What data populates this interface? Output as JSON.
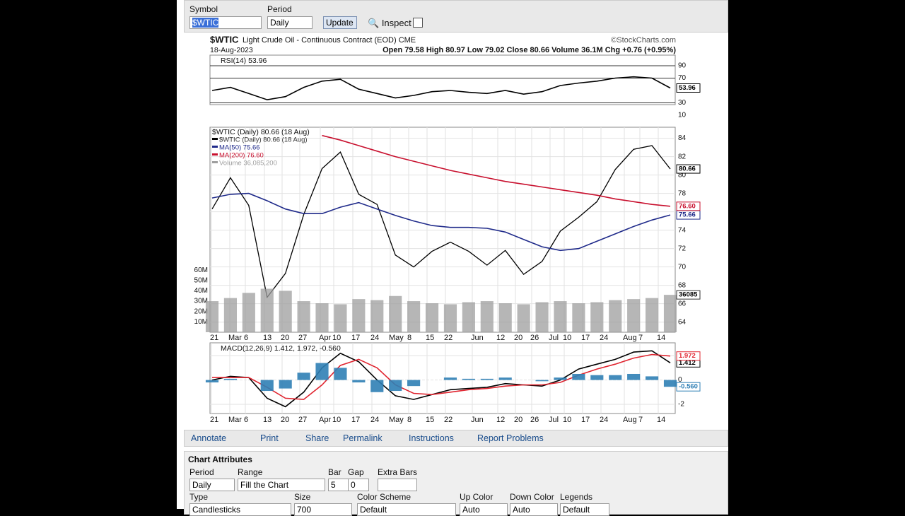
{
  "toolbar": {
    "symbol_label": "Symbol",
    "symbol": "$WTIC",
    "period_label": "Period",
    "period": "Daily",
    "update": "Update",
    "inspect": "Inspect"
  },
  "header": {
    "symbol": "$WTIC",
    "name": "Light Crude Oil - Continuous Contract (EOD) CME",
    "brand": "©StockCharts.com",
    "date": "18-Aug-2023",
    "quote": "Open 79.58  High 80.97  Low 79.02  Close 80.66  Volume 36.1M  Chg +0.76 (+0.95%)"
  },
  "chart_data": [
    {
      "type": "line",
      "title": "$WTIC (Daily) 80.66 (18 Aug)",
      "x_labels": [
        "21",
        "Mar",
        "6",
        "13",
        "20",
        "27",
        "Apr",
        "10",
        "17",
        "24",
        "May",
        "8",
        "15",
        "22",
        "Jun",
        "12",
        "20",
        "26",
        "Jul",
        "10",
        "17",
        "24",
        "Aug",
        "7",
        "14"
      ],
      "ylim": [
        62.9,
        85.2
      ],
      "yticks": [
        64,
        66,
        68,
        70,
        72,
        74,
        76,
        78,
        80,
        82,
        84
      ],
      "y2lim": [
        0,
        198000000
      ],
      "y2ticks": [
        {
          "value": 10000000,
          "label": "10M"
        },
        {
          "value": 20000000,
          "label": "20M"
        },
        {
          "value": 30000000,
          "label": "30M"
        },
        {
          "value": 40000000,
          "label": "40M"
        },
        {
          "value": 50000000,
          "label": "50M"
        },
        {
          "value": 60000000,
          "label": "60M"
        }
      ],
      "grid": true,
      "series": [
        {
          "name": "$WTIC (Daily) 80.66 (18 Aug)",
          "color": "#000000",
          "last_label": "80.66",
          "values": [
            76.3,
            79.7,
            76.7,
            66.7,
            69.3,
            75.7,
            80.7,
            82.5,
            77.9,
            76.8,
            71.3,
            70.0,
            71.7,
            72.7,
            71.7,
            70.2,
            71.8,
            69.2,
            70.6,
            73.9,
            75.4,
            77.1,
            80.6,
            82.8,
            83.2,
            80.66
          ]
        },
        {
          "name": "MA(50) 75.66",
          "color": "#1f2a8a",
          "last_label": "75.66",
          "values": [
            77.5,
            77.9,
            78.0,
            77.2,
            76.3,
            75.8,
            75.8,
            76.5,
            77.0,
            76.3,
            75.6,
            75.0,
            74.5,
            74.3,
            74.3,
            74.2,
            73.8,
            73.0,
            72.2,
            71.8,
            72.0,
            72.8,
            73.6,
            74.4,
            75.1,
            75.66
          ]
        },
        {
          "name": "MA(200) 76.60",
          "color": "#c8102e",
          "last_label": "76.60",
          "values": [
            null,
            null,
            null,
            null,
            null,
            null,
            84.3,
            83.8,
            83.2,
            82.6,
            82.0,
            81.5,
            81.0,
            80.5,
            80.1,
            79.7,
            79.3,
            79.0,
            78.7,
            78.4,
            78.1,
            77.8,
            77.4,
            77.1,
            76.8,
            76.6
          ]
        },
        {
          "name": "Volume 36,085,200",
          "type": "bar",
          "axis": "y2",
          "color": "#9e9e9e",
          "last_label": "36085",
          "values": [
            30000000,
            33000000,
            38000000,
            42000000,
            40000000,
            30000000,
            28000000,
            27000000,
            32000000,
            31000000,
            35000000,
            30000000,
            28000000,
            27000000,
            29000000,
            30000000,
            28000000,
            27000000,
            29000000,
            30000000,
            28000000,
            29000000,
            31000000,
            32000000,
            33000000,
            36085200
          ]
        }
      ]
    },
    {
      "type": "line",
      "title": "RSI(14) 53.96",
      "ylim": [
        27.1,
        107.1
      ],
      "yticks": [
        10,
        30,
        70,
        90
      ],
      "series": [
        {
          "name": "RSI(14)",
          "color": "#000000",
          "last_label": "53.96",
          "values": [
            50,
            55,
            45,
            35,
            40,
            55,
            65,
            68,
            52,
            45,
            38,
            42,
            48,
            50,
            47,
            45,
            50,
            44,
            48,
            58,
            62,
            65,
            70,
            72,
            70,
            53.96
          ]
        }
      ]
    },
    {
      "type": "line",
      "title": "MACD(12,26,9) 1.412, 1.972, -0.560",
      "ylim": [
        -2.76,
        3.06
      ],
      "yticks": [
        -2,
        0,
        2
      ],
      "series": [
        {
          "name": "MACD",
          "color": "#000000",
          "last_label": "1.412",
          "values": [
            0,
            0.3,
            0.2,
            -1.5,
            -2.2,
            -1.0,
            1.0,
            2.2,
            1.5,
            0,
            -1.3,
            -1.6,
            -1.2,
            -0.8,
            -0.7,
            -0.6,
            -0.3,
            -0.4,
            -0.5,
            0,
            0.9,
            1.3,
            1.7,
            2.3,
            2.4,
            1.412
          ]
        },
        {
          "name": "Signal",
          "color": "#e0242f",
          "last_label": "1.972",
          "values": [
            0.2,
            0.2,
            0.2,
            -0.6,
            -1.5,
            -1.6,
            -0.4,
            1.2,
            1.7,
            1.0,
            -0.4,
            -1.1,
            -1.2,
            -1.0,
            -0.8,
            -0.7,
            -0.5,
            -0.4,
            -0.4,
            -0.2,
            0.4,
            0.9,
            1.3,
            1.8,
            2.1,
            1.972
          ]
        },
        {
          "name": "Histogram",
          "type": "bar",
          "color": "#2f7fb5",
          "last_label": "-0.560",
          "values": [
            -0.2,
            0.1,
            0,
            -0.9,
            -0.7,
            0.6,
            1.4,
            1.0,
            -0.2,
            -1.0,
            -0.9,
            -0.5,
            0,
            0.2,
            0.1,
            0.1,
            0.2,
            0,
            -0.1,
            0.2,
            0.5,
            0.4,
            0.4,
            0.5,
            0.3,
            -0.56
          ]
        }
      ]
    }
  ],
  "links": [
    "Annotate",
    "Print",
    "Share",
    "Permalink",
    "Instructions",
    "Report Problems"
  ],
  "attributes": {
    "title": "Chart Attributes",
    "row1": {
      "labels": [
        "Period",
        "Range",
        "Bar",
        "Gap",
        "Extra Bars"
      ],
      "values": [
        "Daily",
        "Fill the Chart",
        "5",
        "0",
        ""
      ]
    },
    "row2": {
      "labels": [
        "Type",
        "Size",
        "Color Scheme",
        "Up Color",
        "Down Color",
        "Legends"
      ],
      "values": [
        "Candlesticks",
        "700",
        "Default",
        "Auto",
        "Auto",
        "Default"
      ]
    }
  }
}
